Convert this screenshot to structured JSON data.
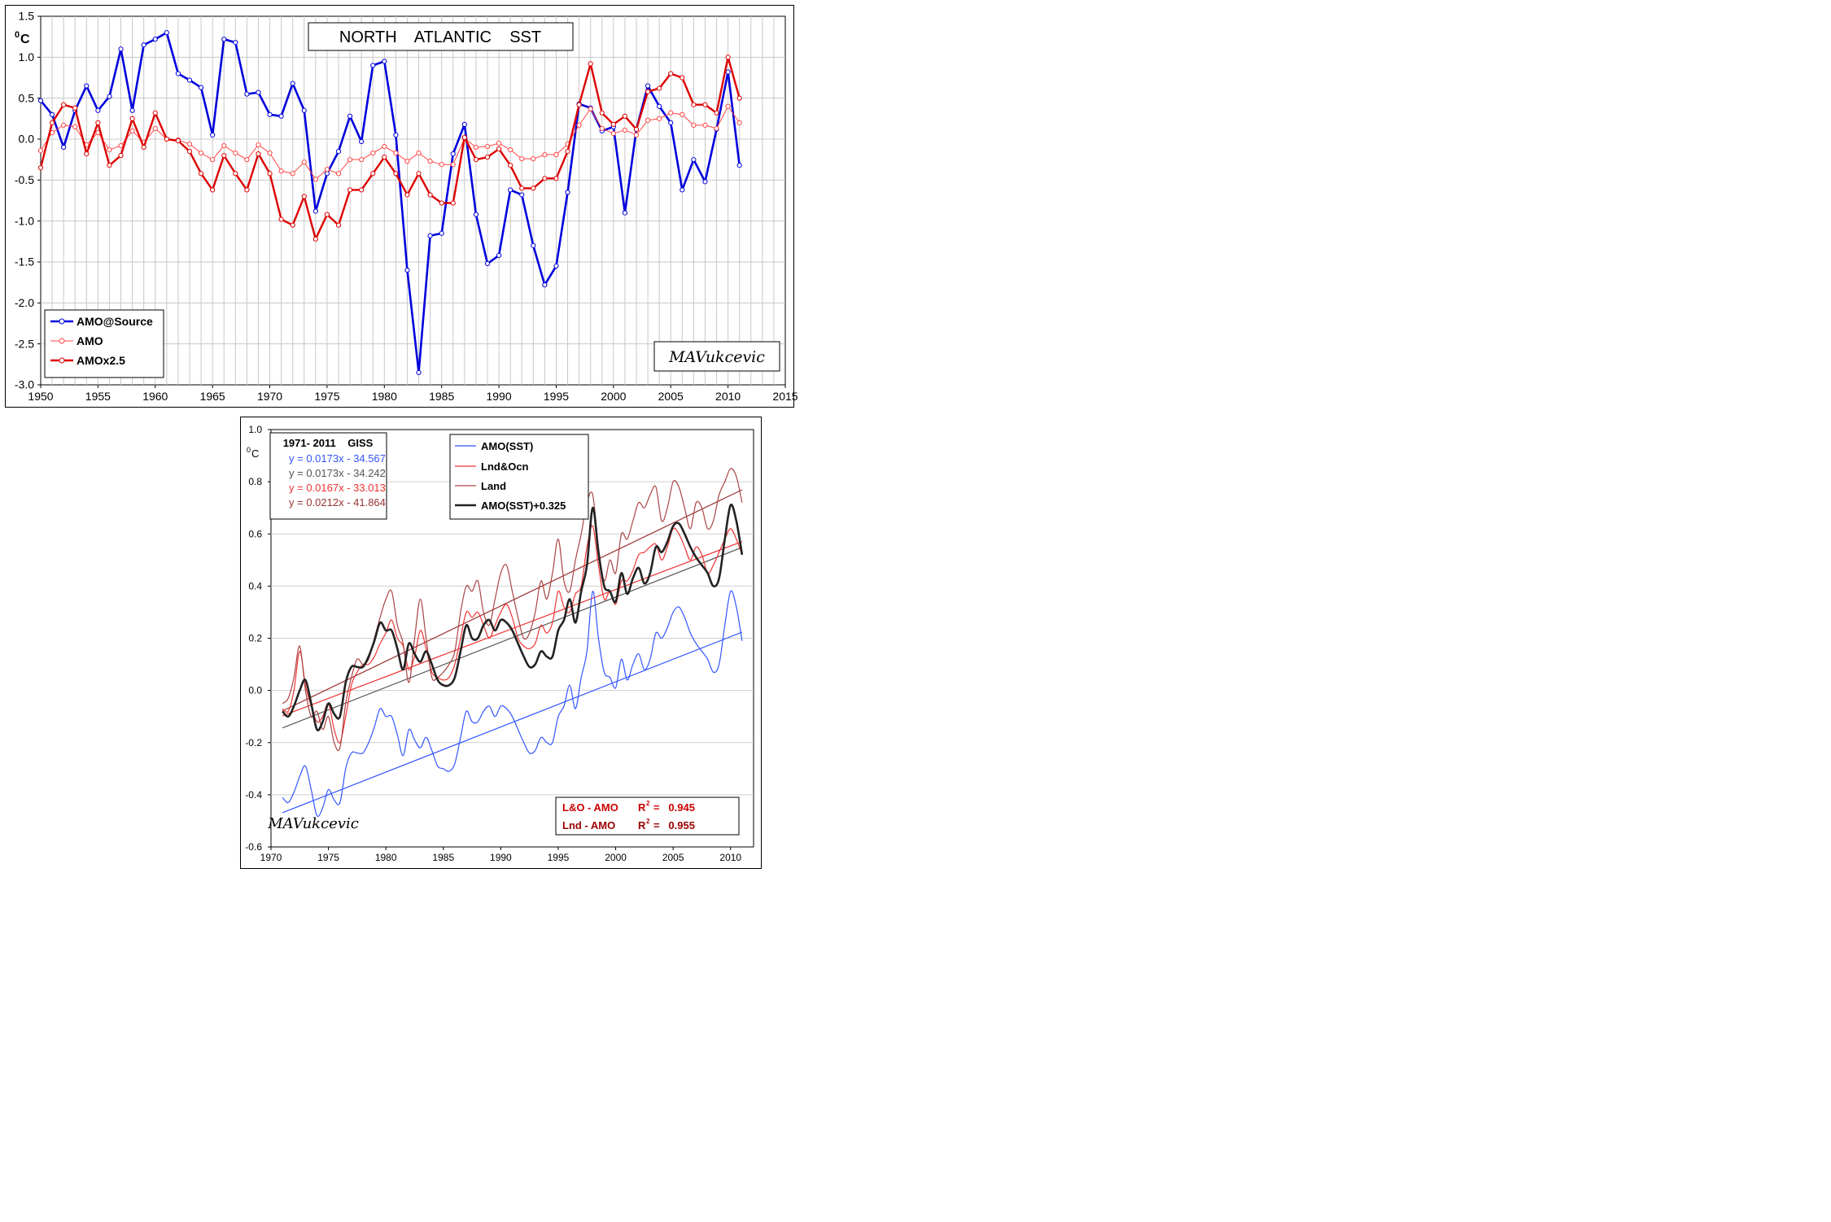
{
  "top_chart": {
    "title": "NORTH    ATLANTIC    SST",
    "unit_sup": "0",
    "unit": "C",
    "signature": "MAVukcevic",
    "legend": [
      "AMO@Source",
      "AMO",
      "AMOx2.5"
    ]
  },
  "bottom_chart": {
    "unit_sup": "0",
    "unit": "C",
    "signature": "MAVukcevic",
    "fit_box": {
      "header": "1971- 2011    GISS",
      "lines": [
        {
          "text": "y = 0.0173x - 34.567",
          "color": "#3355ff"
        },
        {
          "text": "y = 0.0173x - 34.242",
          "color": "#555555"
        },
        {
          "text": "y = 0.0167x - 33.013",
          "color": "#ee3333"
        },
        {
          "text": "y = 0.0212x - 41.864",
          "color": "#993333"
        }
      ]
    },
    "legend": [
      "AMO(SST)",
      "Lnd&Ocn",
      "Land",
      "AMO(SST)+0.325"
    ],
    "r2_box": [
      {
        "label": "L&O - AMO",
        "r_label": "R",
        "sup": "2",
        "value": "=   0.945",
        "color": "#cc0000"
      },
      {
        "label": "Lnd - AMO",
        "r_label": "R",
        "sup": "2",
        "value": "=   0.955",
        "color": "#990000"
      }
    ]
  },
  "chart_data": [
    {
      "type": "line",
      "title": "NORTH    ATLANTIC    SST",
      "xlabel": "",
      "ylabel": "0C",
      "xlim": [
        1950,
        2015
      ],
      "ylim": [
        -3.0,
        1.5
      ],
      "xticks": [
        "1950",
        "1955",
        "1960",
        "1965",
        "1970",
        "1975",
        "1980",
        "1985",
        "1990",
        "1995",
        "2000",
        "2005",
        "2010",
        "2015"
      ],
      "yticks": [
        "1.5",
        "1.0",
        "0.5",
        "0.0",
        "-0.5",
        "-1.0",
        "-1.5",
        "-2.0",
        "-2.5",
        "-3.0"
      ],
      "grid": true,
      "legend_position": "bottom-left",
      "x": [
        1950,
        1951,
        1952,
        1953,
        1954,
        1955,
        1956,
        1957,
        1958,
        1959,
        1960,
        1961,
        1962,
        1963,
        1964,
        1965,
        1966,
        1967,
        1968,
        1969,
        1970,
        1971,
        1972,
        1973,
        1974,
        1975,
        1976,
        1977,
        1978,
        1979,
        1980,
        1981,
        1982,
        1983,
        1984,
        1985,
        1986,
        1987,
        1988,
        1989,
        1990,
        1991,
        1992,
        1993,
        1994,
        1995,
        1996,
        1997,
        1998,
        1999,
        2000,
        2001,
        2002,
        2003,
        2004,
        2005,
        2006,
        2007,
        2008,
        2009,
        2010,
        2011
      ],
      "series": [
        {
          "name": "AMO@Source",
          "color": "#0000dd",
          "values": [
            0.47,
            0.3,
            -0.1,
            0.35,
            0.65,
            0.35,
            0.52,
            1.1,
            0.35,
            1.15,
            1.22,
            1.3,
            0.8,
            0.72,
            0.63,
            0.05,
            1.22,
            1.18,
            0.55,
            0.57,
            0.3,
            0.28,
            0.68,
            0.35,
            -0.88,
            -0.42,
            -0.15,
            0.28,
            -0.03,
            0.9,
            0.95,
            0.05,
            -1.6,
            -2.85,
            -1.18,
            -1.15,
            -0.18,
            0.18,
            -0.92,
            -1.52,
            -1.42,
            -0.62,
            -0.68,
            -1.3,
            -1.78,
            -1.55,
            -0.65,
            0.43,
            0.38,
            0.1,
            0.15,
            -0.9,
            0.12,
            0.65,
            0.4,
            0.2,
            -0.62,
            -0.25,
            -0.52,
            0.12,
            0.82,
            -0.32
          ]
        },
        {
          "name": "AMO",
          "color": "#ff4444",
          "values": [
            -0.14,
            0.08,
            0.17,
            0.15,
            -0.07,
            0.08,
            -0.13,
            -0.08,
            0.1,
            -0.04,
            0.13,
            0.0,
            -0.01,
            -0.06,
            -0.17,
            -0.25,
            -0.08,
            -0.17,
            -0.25,
            -0.07,
            -0.17,
            -0.39,
            -0.42,
            -0.28,
            -0.49,
            -0.37,
            -0.42,
            -0.25,
            -0.25,
            -0.17,
            -0.09,
            -0.17,
            -0.27,
            -0.17,
            -0.27,
            -0.31,
            -0.31,
            0.01,
            -0.1,
            -0.09,
            -0.05,
            -0.13,
            -0.24,
            -0.24,
            -0.19,
            -0.19,
            -0.06,
            0.17,
            0.37,
            0.13,
            0.07,
            0.11,
            0.05,
            0.23,
            0.25,
            0.32,
            0.3,
            0.17,
            0.17,
            0.13,
            0.4,
            0.2
          ]
        },
        {
          "name": "AMOx2.5",
          "color": "#dd0000",
          "values": [
            -0.35,
            0.2,
            0.42,
            0.38,
            -0.18,
            0.2,
            -0.32,
            -0.2,
            0.25,
            -0.1,
            0.32,
            0.0,
            -0.02,
            -0.15,
            -0.42,
            -0.62,
            -0.2,
            -0.42,
            -0.62,
            -0.18,
            -0.42,
            -0.98,
            -1.05,
            -0.7,
            -1.22,
            -0.92,
            -1.05,
            -0.62,
            -0.62,
            -0.42,
            -0.22,
            -0.42,
            -0.68,
            -0.42,
            -0.68,
            -0.78,
            -0.78,
            0.02,
            -0.25,
            -0.22,
            -0.12,
            -0.32,
            -0.6,
            -0.6,
            -0.48,
            -0.48,
            -0.15,
            0.42,
            0.92,
            0.32,
            0.18,
            0.28,
            0.12,
            0.58,
            0.62,
            0.8,
            0.75,
            0.42,
            0.42,
            0.32,
            1.0,
            0.5
          ]
        }
      ]
    },
    {
      "type": "line",
      "title": "",
      "xlabel": "",
      "ylabel": "0C",
      "xlim": [
        1970,
        2012
      ],
      "ylim": [
        -0.6,
        1.0
      ],
      "xticks": [
        "1970",
        "1975",
        "1980",
        "1985",
        "1990",
        "1995",
        "2000",
        "2005",
        "2010"
      ],
      "yticks": [
        "1.0",
        "0.8",
        "0.6",
        "0.4",
        "0.2",
        "0.0",
        "-0.2",
        "-0.4",
        "-0.6"
      ],
      "grid": true,
      "legend_position": "top-center",
      "x": [
        1971,
        1971.5,
        1972,
        1972.5,
        1973,
        1973.5,
        1974,
        1974.5,
        1975,
        1975.5,
        1976,
        1976.5,
        1977,
        1977.5,
        1978,
        1978.5,
        1979,
        1979.5,
        1980,
        1980.5,
        1981,
        1981.5,
        1982,
        1982.5,
        1983,
        1983.5,
        1984,
        1984.5,
        1985,
        1985.5,
        1986,
        1986.5,
        1987,
        1987.5,
        1988,
        1988.5,
        1989,
        1989.5,
        1990,
        1990.5,
        1991,
        1991.5,
        1992,
        1992.5,
        1993,
        1993.5,
        1994,
        1994.5,
        1995,
        1995.5,
        1996,
        1996.5,
        1997,
        1997.5,
        1998,
        1998.5,
        1999,
        1999.5,
        2000,
        2000.5,
        2001,
        2001.5,
        2002,
        2002.5,
        2003,
        2003.5,
        2004,
        2004.5,
        2005,
        2005.5,
        2006,
        2006.5,
        2007,
        2007.5,
        2008,
        2008.5,
        2009,
        2009.5,
        2010,
        2010.5,
        2011
      ],
      "series": [
        {
          "name": "AMO(SST)",
          "color": "#3355ff",
          "values": [
            -0.41,
            -0.43,
            -0.39,
            -0.33,
            -0.29,
            -0.38,
            -0.48,
            -0.45,
            -0.38,
            -0.42,
            -0.43,
            -0.3,
            -0.24,
            -0.24,
            -0.24,
            -0.2,
            -0.14,
            -0.07,
            -0.1,
            -0.1,
            -0.17,
            -0.25,
            -0.15,
            -0.19,
            -0.22,
            -0.18,
            -0.23,
            -0.29,
            -0.3,
            -0.31,
            -0.28,
            -0.18,
            -0.08,
            -0.12,
            -0.12,
            -0.08,
            -0.06,
            -0.1,
            -0.06,
            -0.07,
            -0.1,
            -0.15,
            -0.2,
            -0.24,
            -0.23,
            -0.18,
            -0.2,
            -0.2,
            -0.1,
            -0.06,
            0.02,
            -0.07,
            0.05,
            0.15,
            0.38,
            0.2,
            0.07,
            0.05,
            0.01,
            0.12,
            0.04,
            0.1,
            0.14,
            0.08,
            0.12,
            0.22,
            0.2,
            0.24,
            0.3,
            0.32,
            0.28,
            0.22,
            0.18,
            0.15,
            0.12,
            0.07,
            0.1,
            0.25,
            0.38,
            0.32,
            0.19
          ]
        },
        {
          "name": "Lnd&Ocn",
          "color": "#ee3333",
          "values": [
            -0.07,
            -0.08,
            0.0,
            0.15,
            0.02,
            -0.06,
            -0.12,
            -0.1,
            -0.05,
            -0.15,
            -0.2,
            -0.1,
            0.02,
            0.07,
            0.1,
            0.1,
            0.13,
            0.18,
            0.22,
            0.27,
            0.2,
            0.17,
            0.08,
            0.13,
            0.23,
            0.16,
            0.07,
            0.05,
            0.04,
            0.05,
            0.1,
            0.2,
            0.3,
            0.28,
            0.3,
            0.25,
            0.2,
            0.25,
            0.3,
            0.33,
            0.28,
            0.2,
            0.17,
            0.16,
            0.18,
            0.25,
            0.22,
            0.26,
            0.38,
            0.32,
            0.3,
            0.37,
            0.4,
            0.55,
            0.63,
            0.48,
            0.35,
            0.38,
            0.33,
            0.42,
            0.42,
            0.46,
            0.52,
            0.53,
            0.55,
            0.56,
            0.5,
            0.55,
            0.62,
            0.6,
            0.55,
            0.5,
            0.55,
            0.52,
            0.45,
            0.48,
            0.53,
            0.58,
            0.62,
            0.58,
            0.52
          ]
        },
        {
          "name": "Land",
          "color": "#aa4444",
          "values": [
            -0.05,
            -0.03,
            0.05,
            0.17,
            0.0,
            -0.1,
            -0.08,
            -0.15,
            -0.1,
            -0.2,
            -0.22,
            -0.05,
            0.05,
            0.12,
            0.1,
            0.12,
            0.2,
            0.28,
            0.35,
            0.38,
            0.25,
            0.18,
            0.03,
            0.2,
            0.35,
            0.2,
            0.05,
            0.05,
            0.07,
            0.1,
            0.15,
            0.3,
            0.4,
            0.38,
            0.42,
            0.3,
            0.25,
            0.35,
            0.45,
            0.48,
            0.38,
            0.28,
            0.2,
            0.22,
            0.3,
            0.42,
            0.35,
            0.45,
            0.58,
            0.42,
            0.38,
            0.5,
            0.6,
            0.72,
            0.75,
            0.55,
            0.42,
            0.5,
            0.45,
            0.6,
            0.58,
            0.65,
            0.72,
            0.7,
            0.75,
            0.78,
            0.65,
            0.7,
            0.8,
            0.78,
            0.7,
            0.62,
            0.72,
            0.7,
            0.62,
            0.65,
            0.75,
            0.8,
            0.85,
            0.82,
            0.72
          ]
        },
        {
          "name": "AMO(SST)+0.325",
          "color": "#222222",
          "values": [
            -0.08,
            -0.1,
            -0.06,
            0.0,
            0.04,
            -0.05,
            -0.15,
            -0.12,
            -0.05,
            -0.09,
            -0.1,
            0.03,
            0.09,
            0.09,
            0.09,
            0.13,
            0.19,
            0.26,
            0.23,
            0.23,
            0.16,
            0.08,
            0.18,
            0.14,
            0.11,
            0.15,
            0.1,
            0.04,
            0.02,
            0.02,
            0.05,
            0.15,
            0.25,
            0.2,
            0.2,
            0.25,
            0.27,
            0.23,
            0.27,
            0.26,
            0.23,
            0.18,
            0.13,
            0.09,
            0.1,
            0.15,
            0.13,
            0.13,
            0.23,
            0.27,
            0.35,
            0.26,
            0.38,
            0.48,
            0.7,
            0.53,
            0.4,
            0.38,
            0.34,
            0.45,
            0.37,
            0.43,
            0.47,
            0.41,
            0.45,
            0.55,
            0.53,
            0.57,
            0.63,
            0.64,
            0.6,
            0.55,
            0.51,
            0.48,
            0.45,
            0.4,
            0.43,
            0.58,
            0.71,
            0.65,
            0.52
          ]
        }
      ],
      "trend_lines": [
        {
          "name": "AMO(SST) trend",
          "color": "#3355ff",
          "slope": 0.0173,
          "intercept": -34.567,
          "x_range": [
            1971,
            2011
          ]
        },
        {
          "name": "AMO(SST)+0.325 trend",
          "color": "#555555",
          "slope": 0.0173,
          "intercept": -34.242,
          "x_range": [
            1971,
            2011
          ]
        },
        {
          "name": "Lnd&Ocn trend",
          "color": "#ee3333",
          "slope": 0.0167,
          "intercept": -33.013,
          "x_range": [
            1971,
            2011
          ]
        },
        {
          "name": "Land trend",
          "color": "#993333",
          "slope": 0.0212,
          "intercept": -41.864,
          "x_range": [
            1971,
            2011
          ]
        }
      ]
    }
  ]
}
